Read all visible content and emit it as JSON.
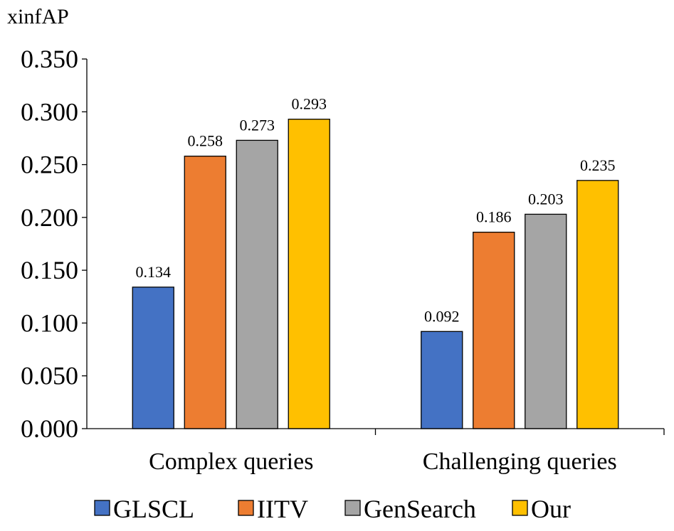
{
  "chart_data": {
    "type": "bar",
    "title": "",
    "xlabel": "",
    "ylabel": "xinfAP",
    "ylim": [
      0,
      0.35
    ],
    "yticks": [
      "0.000",
      "0.050",
      "0.100",
      "0.150",
      "0.200",
      "0.250",
      "0.300",
      "0.350"
    ],
    "categories": [
      "Complex queries",
      "Challenging queries"
    ],
    "series": [
      {
        "name": "GLSCL",
        "color": "#4472C4",
        "values": [
          0.134,
          0.092
        ],
        "labels": [
          "0.134",
          "0.092"
        ]
      },
      {
        "name": "IITV",
        "color": "#ED7D31",
        "values": [
          0.258,
          0.186
        ],
        "labels": [
          "0.258",
          "0.186"
        ]
      },
      {
        "name": "GenSearch",
        "color": "#A5A5A5",
        "values": [
          0.273,
          0.203
        ],
        "labels": [
          "0.273",
          "0.203"
        ]
      },
      {
        "name": "Our",
        "color": "#FFC000",
        "values": [
          0.293,
          0.235
        ],
        "labels": [
          "0.293",
          "0.235"
        ]
      }
    ],
    "legend_position": "bottom",
    "grid": false
  }
}
